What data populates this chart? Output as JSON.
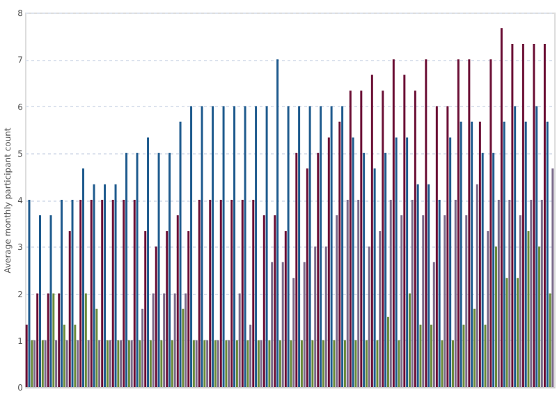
{
  "chart_data": {
    "type": "bar",
    "ylabel": "Average monthly participant count",
    "categories": [
      null,
      null,
      null,
      null,
      null,
      null,
      null,
      null,
      null,
      null,
      null,
      null,
      null,
      null,
      null,
      null,
      null,
      null,
      null,
      null,
      null,
      null,
      null,
      null,
      null,
      null,
      null,
      null,
      null,
      null,
      null,
      null,
      null,
      null,
      null,
      null,
      null,
      null,
      null,
      null,
      null,
      null,
      null,
      null,
      null,
      null,
      null,
      null,
      null
    ],
    "series": [
      {
        "color": "#6b0f35",
        "values": [
          1.33,
          2,
          2,
          2,
          3.33,
          4,
          4,
          4,
          4,
          4,
          4,
          3.33,
          3,
          3.33,
          3.67,
          3.33,
          4,
          4,
          4,
          4,
          4,
          4,
          3.67,
          3.67,
          3.33,
          5,
          4.67,
          5,
          5.33,
          5.67,
          6.33,
          6.33,
          6.67,
          6.33,
          7,
          6.67,
          6.33,
          7,
          6,
          6,
          7,
          7,
          5.67,
          7,
          7.67,
          7.33,
          7.33,
          7.33,
          7.33
        ]
      },
      {
        "color": "#1f5b8e",
        "values": [
          4,
          3.67,
          3.67,
          4,
          4,
          4.67,
          4.33,
          4.33,
          4.33,
          5,
          5,
          5.33,
          5,
          5,
          5.67,
          6,
          6,
          6,
          6,
          6,
          6,
          6,
          6,
          7,
          6,
          6,
          6,
          6,
          6,
          6,
          5.33,
          5,
          4.67,
          5,
          5.33,
          5.33,
          4.33,
          4.33,
          4,
          5.33,
          5.67,
          5.67,
          5,
          5,
          5.67,
          6,
          5.67,
          6,
          5.67
        ]
      },
      {
        "color": "#6b8a3a",
        "values": [
          1,
          1,
          2,
          1.33,
          1.33,
          2,
          1.67,
          1,
          1,
          1,
          1,
          1,
          1,
          1,
          1.67,
          1,
          1,
          1,
          1,
          1,
          1,
          1,
          1,
          1,
          1,
          1,
          1,
          1,
          1,
          1,
          1,
          1,
          1,
          1.5,
          1,
          2,
          1.33,
          1.33,
          1,
          1,
          1.33,
          1.67,
          1.33,
          3,
          2.33,
          2.33,
          3.33,
          3,
          2
        ]
      },
      {
        "color": "#7a6a8a",
        "values": [
          1,
          1,
          1,
          1,
          1,
          1,
          1,
          1,
          1,
          1,
          1.67,
          2,
          2,
          2,
          2,
          1,
          1,
          1,
          1,
          2,
          1.33,
          1,
          2.67,
          2.67,
          2.33,
          2.67,
          3,
          3,
          3.67,
          4,
          4,
          3,
          3.33,
          4,
          3.67,
          4,
          3.67,
          2.67,
          3.67,
          4,
          3.67,
          4.33,
          3.33,
          4,
          4,
          3.67,
          4,
          4,
          4.67
        ]
      }
    ],
    "ylim": [
      0,
      8
    ],
    "yticks": [
      0,
      1,
      2,
      3,
      4,
      5,
      6,
      7,
      8
    ],
    "grid": "y",
    "legend": false,
    "tick_labels": "y"
  }
}
